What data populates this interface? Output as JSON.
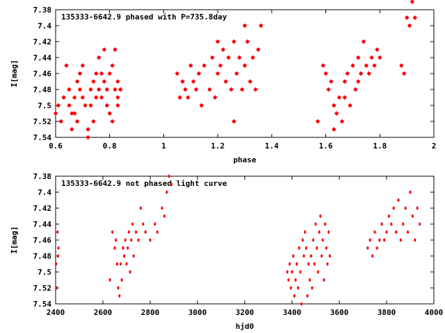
{
  "chart_data": [
    {
      "type": "scatter",
      "title": "135333-6642.9 phased with P=735.8day",
      "xlabel": "phase",
      "ylabel": "I[mag]",
      "xlim": [
        0.6,
        2.0
      ],
      "ylim": [
        7.54,
        7.38
      ],
      "y_inverted": true,
      "grid": false,
      "xticks": [
        "0.6",
        "0.8",
        "1",
        "1.2",
        "1.4",
        "1.6",
        "1.8",
        "2"
      ],
      "yticks": [
        "7.38",
        "7.4",
        "7.42",
        "7.44",
        "7.46",
        "7.48",
        "7.5",
        "7.52",
        "7.54"
      ],
      "marker_color": "#ff0000",
      "series": [
        {
          "x": [
            0.6,
            0.61,
            0.62,
            0.63,
            0.64,
            0.65,
            0.65,
            0.66,
            0.66,
            0.67,
            0.67,
            0.68,
            0.68,
            0.69,
            0.69,
            0.7,
            0.7,
            0.71,
            0.72,
            0.72,
            0.73,
            0.73,
            0.74,
            0.74,
            0.75,
            0.75,
            0.76,
            0.76,
            0.77,
            0.77,
            0.78,
            0.78,
            0.79,
            0.79,
            0.8,
            0.8,
            0.81,
            0.81,
            0.82,
            0.82,
            0.83,
            0.83,
            0.83,
            0.84,
            1.05,
            1.06,
            1.07,
            1.08,
            1.09,
            1.1,
            1.11,
            1.12,
            1.13,
            1.14,
            1.15,
            1.17,
            1.18,
            1.19,
            1.2,
            1.2,
            1.21,
            1.22,
            1.23,
            1.24,
            1.25,
            1.26,
            1.26,
            1.27,
            1.28,
            1.29,
            1.3,
            1.3,
            1.31,
            1.32,
            1.33,
            1.34,
            1.35,
            1.36,
            1.57,
            1.59,
            1.6,
            1.61,
            1.62,
            1.63,
            1.63,
            1.64,
            1.65,
            1.66,
            1.67,
            1.67,
            1.68,
            1.69,
            1.7,
            1.71,
            1.72,
            1.72,
            1.73,
            1.74,
            1.75,
            1.76,
            1.77,
            1.78,
            1.79,
            1.8,
            1.88,
            1.89,
            1.9,
            1.91,
            1.92,
            1.93
          ],
          "y": [
            7.51,
            7.5,
            7.52,
            7.49,
            7.45,
            7.5,
            7.48,
            7.53,
            7.51,
            7.49,
            7.51,
            7.47,
            7.52,
            7.46,
            7.48,
            7.45,
            7.49,
            7.5,
            7.53,
            7.54,
            7.48,
            7.5,
            7.47,
            7.52,
            7.46,
            7.49,
            7.48,
            7.44,
            7.46,
            7.49,
            7.43,
            7.47,
            7.48,
            7.5,
            7.46,
            7.51,
            7.45,
            7.52,
            7.43,
            7.48,
            7.47,
            7.49,
            7.5,
            7.48,
            7.46,
            7.49,
            7.47,
            7.48,
            7.49,
            7.45,
            7.47,
            7.48,
            7.46,
            7.5,
            7.45,
            7.48,
            7.44,
            7.49,
            7.46,
            7.42,
            7.45,
            7.43,
            7.47,
            7.44,
            7.48,
            7.42,
            7.52,
            7.46,
            7.44,
            7.48,
            7.4,
            7.45,
            7.42,
            7.47,
            7.44,
            7.48,
            7.43,
            7.4,
            7.52,
            7.45,
            7.46,
            7.48,
            7.47,
            7.53,
            7.5,
            7.51,
            7.49,
            7.52,
            7.47,
            7.49,
            7.46,
            7.5,
            7.45,
            7.48,
            7.47,
            7.44,
            7.46,
            7.42,
            7.45,
            7.46,
            7.44,
            7.45,
            7.43,
            7.44,
            7.45,
            7.46,
            7.39,
            7.4,
            7.37,
            7.39
          ]
        }
      ]
    },
    {
      "type": "scatter",
      "title": "135333-6642.9 not phased light curve",
      "xlabel": "hjd0",
      "ylabel": "I[mag]",
      "xlim": [
        2400,
        4000
      ],
      "ylim": [
        7.54,
        7.38
      ],
      "y_inverted": true,
      "grid": false,
      "xticks": [
        "2400",
        "2600",
        "2800",
        "3000",
        "3200",
        "3400",
        "3600",
        "3800",
        "4000"
      ],
      "yticks": [
        "7.38",
        "7.4",
        "7.42",
        "7.44",
        "7.46",
        "7.48",
        "7.5",
        "7.52",
        "7.54"
      ],
      "marker_color": "#ff0000",
      "series": [
        {
          "x": [
            2402,
            2405,
            2408,
            2410,
            2412,
            2630,
            2640,
            2650,
            2655,
            2660,
            2665,
            2670,
            2675,
            2680,
            2685,
            2690,
            2695,
            2700,
            2705,
            2710,
            2715,
            2720,
            2725,
            2730,
            2740,
            2750,
            2760,
            2770,
            2780,
            2800,
            2820,
            2830,
            2850,
            2860,
            2870,
            2880,
            2890,
            3380,
            3385,
            3390,
            3395,
            3400,
            3405,
            3410,
            3415,
            3420,
            3425,
            3430,
            3435,
            3440,
            3445,
            3450,
            3455,
            3460,
            3465,
            3470,
            3475,
            3480,
            3485,
            3490,
            3495,
            3500,
            3505,
            3510,
            3515,
            3520,
            3525,
            3530,
            3535,
            3540,
            3545,
            3550,
            3555,
            3560,
            3720,
            3730,
            3740,
            3750,
            3760,
            3770,
            3780,
            3790,
            3800,
            3810,
            3820,
            3830,
            3840,
            3850,
            3860,
            3870,
            3880,
            3890,
            3900,
            3910,
            3920,
            3930,
            3940
          ],
          "y": [
            7.49,
            7.52,
            7.45,
            7.48,
            7.47,
            7.51,
            7.45,
            7.47,
            7.46,
            7.49,
            7.52,
            7.53,
            7.49,
            7.51,
            7.47,
            7.48,
            7.46,
            7.49,
            7.47,
            7.45,
            7.5,
            7.46,
            7.44,
            7.48,
            7.45,
            7.46,
            7.42,
            7.44,
            7.45,
            7.46,
            7.44,
            7.45,
            7.42,
            7.43,
            7.4,
            7.38,
            7.39,
            7.5,
            7.51,
            7.49,
            7.52,
            7.5,
            7.48,
            7.53,
            7.51,
            7.49,
            7.52,
            7.47,
            7.5,
            7.54,
            7.46,
            7.48,
            7.45,
            7.47,
            7.53,
            7.49,
            7.51,
            7.48,
            7.52,
            7.46,
            7.49,
            7.44,
            7.47,
            7.5,
            7.45,
            7.43,
            7.48,
            7.46,
            7.51,
            7.44,
            7.47,
            7.49,
            7.45,
            7.48,
            7.47,
            7.46,
            7.48,
            7.45,
            7.47,
            7.46,
            7.44,
            7.46,
            7.45,
            7.43,
            7.44,
            7.42,
            7.45,
            7.41,
            7.46,
            7.44,
            7.42,
            7.45,
            7.4,
            7.43,
            7.46,
            7.42,
            7.44
          ]
        }
      ]
    }
  ]
}
